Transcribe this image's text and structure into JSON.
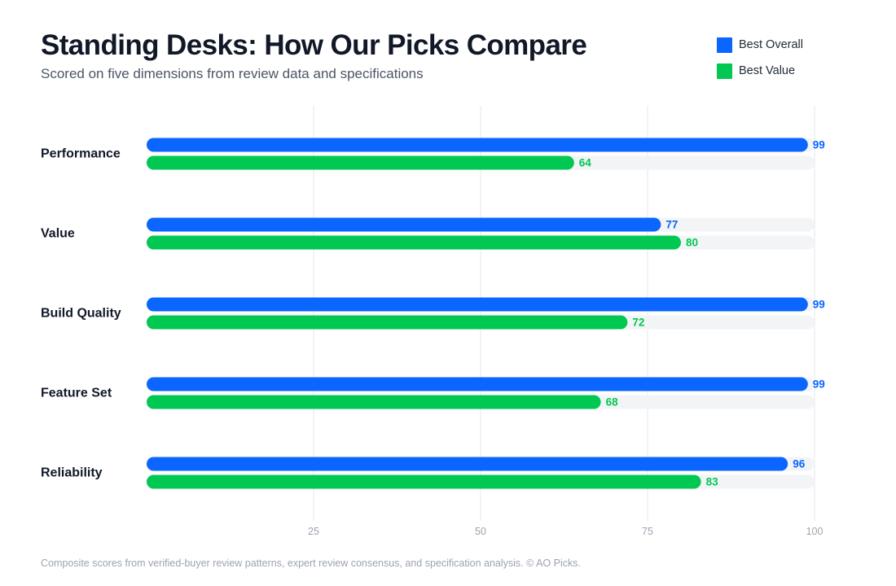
{
  "header": {
    "title": "Standing Desks: How Our Picks Compare",
    "subtitle": "Scored on five dimensions from review data and specifications"
  },
  "colors": {
    "best_overall": "#0a66ff",
    "best_value": "#00c853",
    "track": "#f3f4f6",
    "grid": "#e5e7eb",
    "tick_text": "#9ca3af",
    "category_text": "#111827"
  },
  "chart_data": {
    "type": "bar",
    "orientation": "horizontal",
    "categories": [
      "Performance",
      "Value",
      "Build Quality",
      "Feature Set",
      "Reliability"
    ],
    "series": [
      {
        "name": "Best Overall",
        "values": [
          99,
          77,
          99,
          99,
          96
        ]
      },
      {
        "name": "Best Value",
        "values": [
          64,
          80,
          72,
          68,
          83
        ]
      }
    ],
    "xlim": [
      0,
      100
    ],
    "xticks": [
      25,
      50,
      75,
      100
    ],
    "grid": true,
    "legend_position": "top-right",
    "data_labels": true
  },
  "footnote": "Composite scores from verified-buyer review patterns, expert review consensus, and specification analysis. © AO Picks."
}
